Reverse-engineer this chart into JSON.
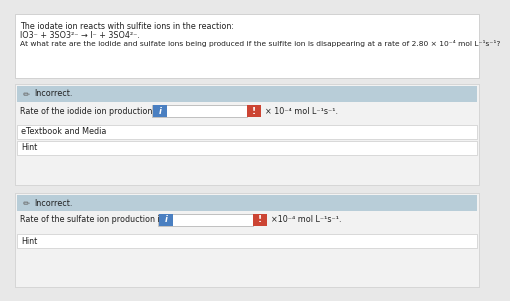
{
  "bg_color": "#e8e8e8",
  "white": "#ffffff",
  "light_blue_header": "#b8cdd8",
  "panel_bg": "#f2f2f2",
  "blue_btn": "#4a7fc1",
  "red_btn": "#cc4433",
  "dark_text": "#222222",
  "pencil_color": "#888888",
  "line1": "The iodate ion reacts with sulfite ions in the reaction:",
  "line2": "IO3⁻ + 3SO3²⁻ → I⁻ + 3SO4²⁻.",
  "line3": "At what rate are the iodide and sulfate ions being produced if the sulfite ion is disappearing at a rate of 2.80 × 10⁻⁴ mol L⁻¹s⁻¹?",
  "incorrect_label": "Incorrect.",
  "iodide_label": "Rate of the iodide ion production is",
  "sulfate_label": "Rate of the sulfate ion production is",
  "units1": "× 10⁻⁴ mol L⁻¹s⁻¹.",
  "units2": "×10⁻⁴ mol L⁻¹s⁻¹.",
  "etextbook": "eTextbook and Media",
  "hint": "Hint",
  "input_border": "#aaaaaa",
  "panel_border": "#cccccc"
}
